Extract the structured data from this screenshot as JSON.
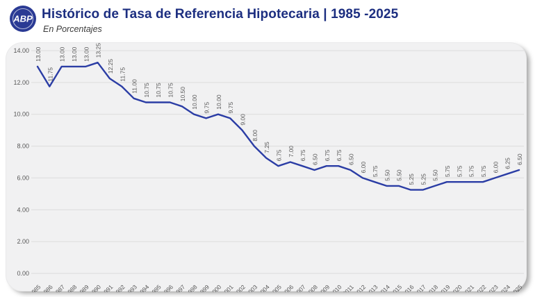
{
  "header": {
    "title": "Histórico de Tasa de Referencia Hipotecaria | 1985 -2025",
    "subtitle": "En Porcentajes",
    "logo_text": "ABP"
  },
  "colors": {
    "title": "#1c2e80",
    "line": "#2b3da5",
    "label_text": "#575757",
    "grid": "#dcdcdc",
    "card_bg": "#f1f1f2",
    "logo_bg": "#2a3a94",
    "logo_ring": "#ffffff"
  },
  "chart_data": {
    "type": "line",
    "title": "Histórico de Tasa de Referencia Hipotecaria | 1985 -2025",
    "subtitle": "En Porcentajes",
    "xlabel": "",
    "ylabel": "",
    "x": [
      1985,
      1986,
      1987,
      1988,
      1989,
      1990,
      1991,
      1992,
      1993,
      1994,
      1995,
      1996,
      1997,
      1998,
      1999,
      2000,
      2001,
      2002,
      2003,
      2004,
      2005,
      2006,
      2007,
      2008,
      2009,
      2010,
      2011,
      2012,
      2013,
      2014,
      2015,
      2016,
      2017,
      2018,
      2019,
      2020,
      2021,
      2022,
      2023,
      2024,
      2025
    ],
    "values": [
      13.0,
      11.75,
      13.0,
      13.0,
      13.0,
      13.25,
      12.25,
      11.75,
      11.0,
      10.75,
      10.75,
      10.75,
      10.5,
      10.0,
      9.75,
      10.0,
      9.75,
      9.0,
      8.0,
      7.25,
      6.75,
      7.0,
      6.75,
      6.5,
      6.75,
      6.75,
      6.5,
      6.0,
      5.75,
      5.5,
      5.5,
      5.25,
      5.25,
      5.5,
      5.75,
      5.75,
      5.75,
      5.75,
      6.0,
      6.25,
      6.5
    ],
    "ylim": [
      0,
      14
    ],
    "ytick_step": 2,
    "yticks": [
      "14.00",
      "12.00",
      "10.00",
      "8.00",
      "6.00",
      "4.00",
      "2.00",
      "0.00"
    ],
    "grid": "horizontal",
    "legend": "none",
    "data_labels": true
  }
}
